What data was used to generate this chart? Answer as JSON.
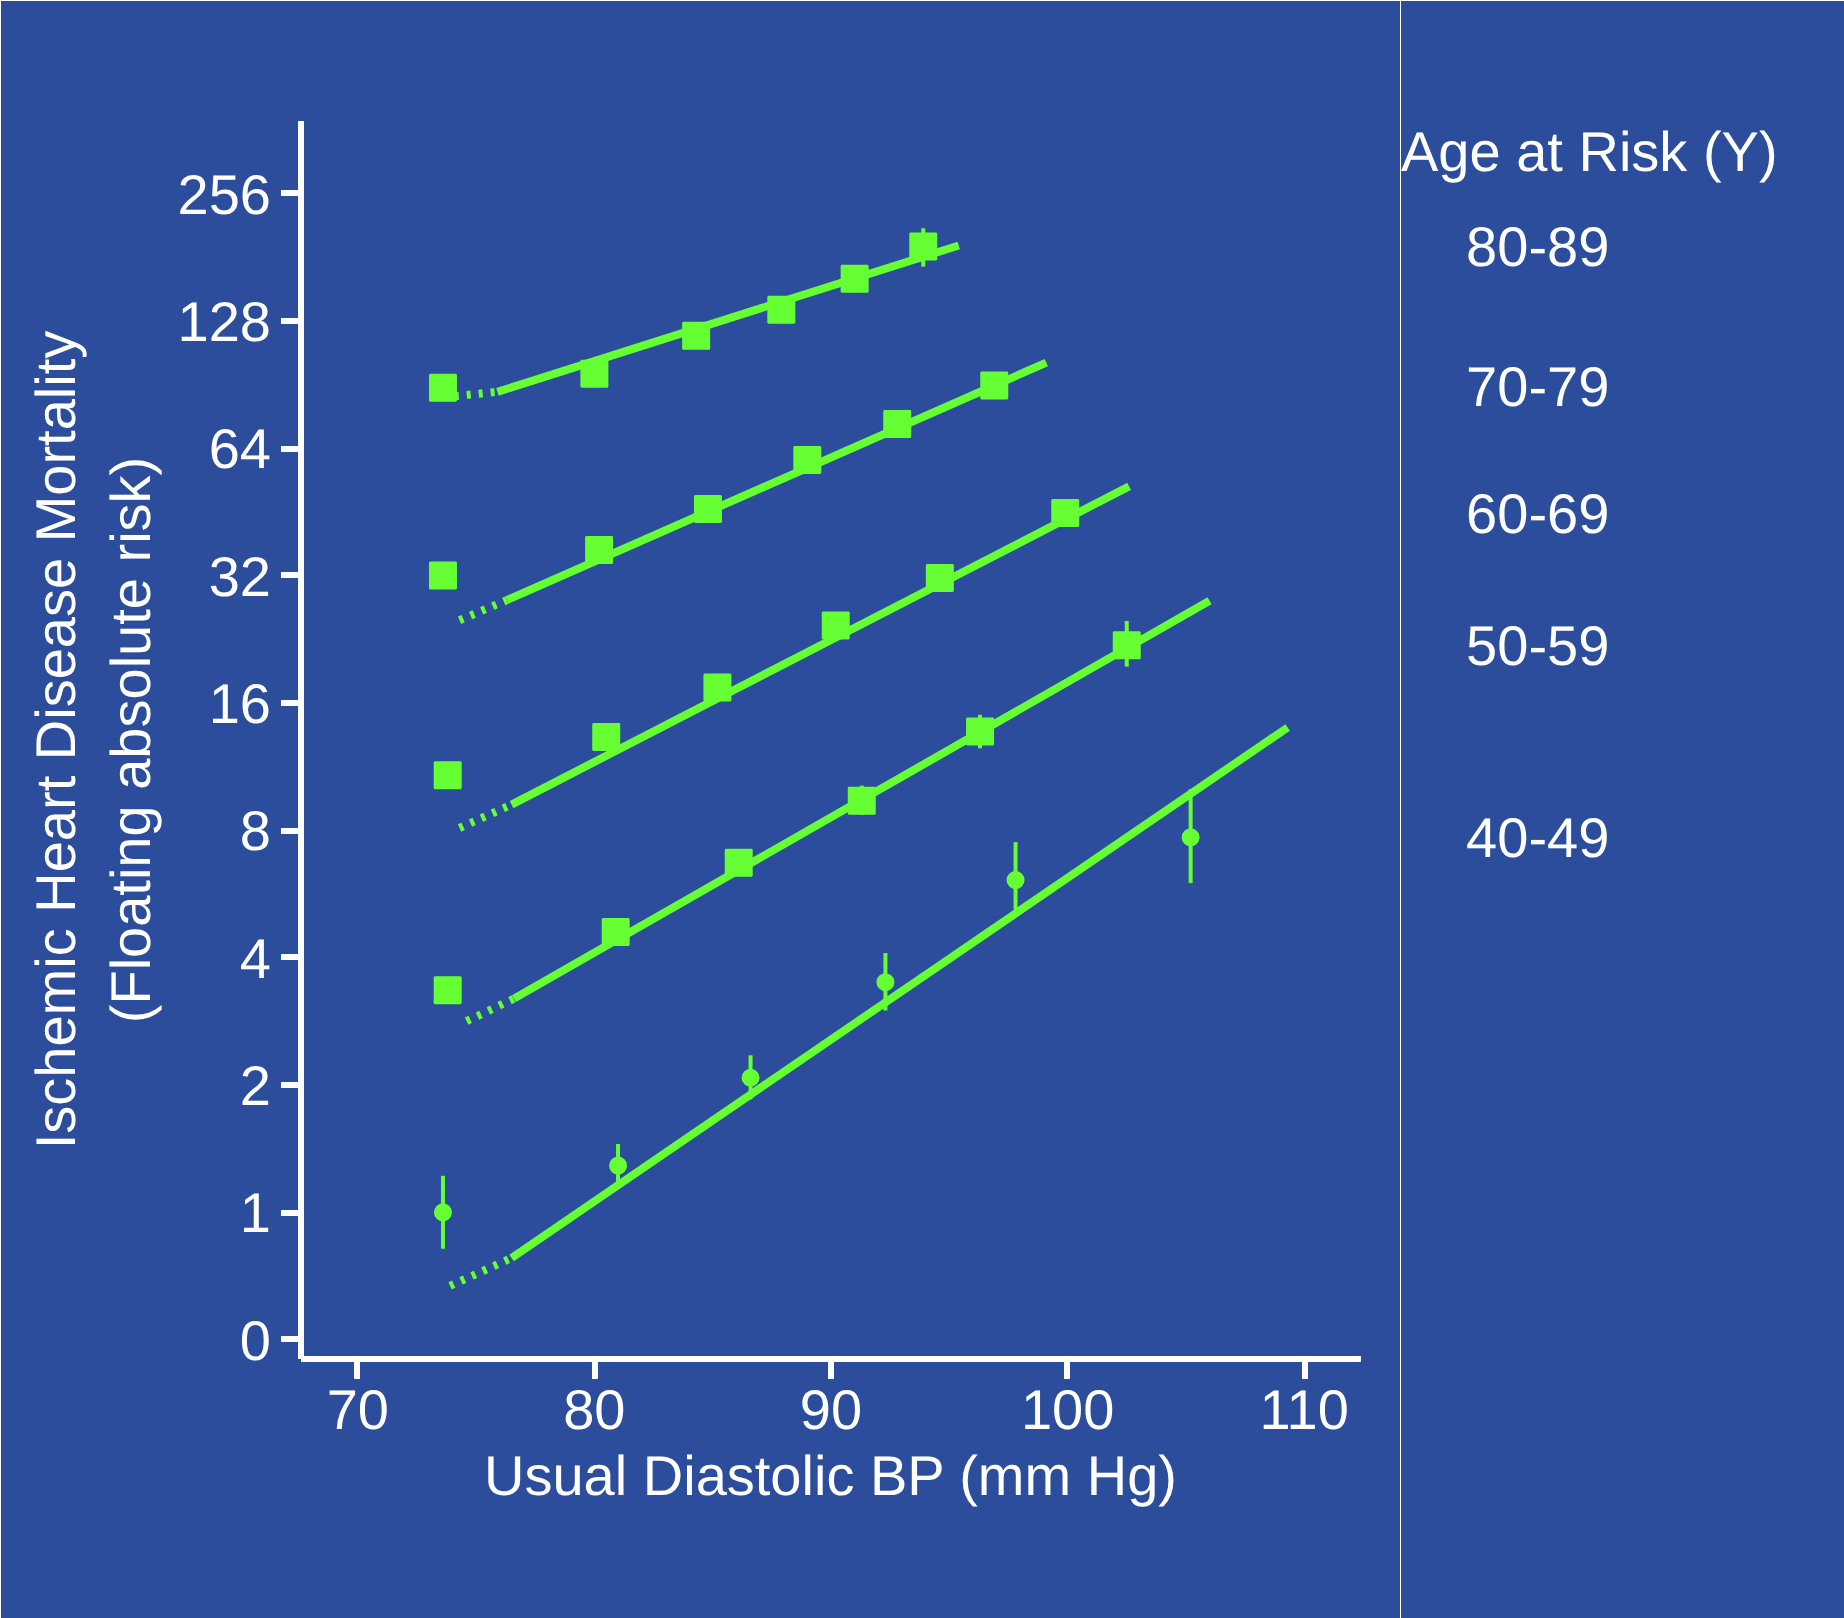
{
  "chart_data": {
    "type": "scatter",
    "xlabel": "Usual Diastolic BP (mm Hg)",
    "ylabel": "Ischemic Heart Disease Mortality\n(Floating absolute risk)",
    "legend_title": "Age at Risk (Y)",
    "log": "y",
    "grid": false,
    "marker": "square",
    "xlim": [
      67.6,
      112.4
    ],
    "xticks": [
      70,
      80,
      90,
      100,
      110
    ],
    "ylim": [
      0.45,
      380
    ],
    "yticks": [
      {
        "value": 0.5,
        "label": "0"
      },
      1,
      2,
      4,
      8,
      16,
      32,
      64,
      128,
      256
    ],
    "series": [
      {
        "name": "80-89",
        "color": "#66ff33",
        "x": [
          73.6,
          80.0,
          84.3,
          87.9,
          91.0,
          93.9
        ],
        "values": [
          89,
          96,
          118,
          136,
          161,
          192
        ],
        "errors": [
          [
            84,
            94
          ],
          null,
          null,
          null,
          null,
          [
            172,
            212
          ]
        ]
      },
      {
        "name": "70-79",
        "color": "#66ff33",
        "x": [
          73.6,
          80.2,
          84.8,
          89.0,
          92.8,
          96.9
        ],
        "values": [
          32,
          36.8,
          46,
          60,
          73,
          90
        ],
        "errors": [
          null,
          null,
          null,
          null,
          null,
          [
            84,
            96
          ]
        ]
      },
      {
        "name": "60-69",
        "color": "#66ff33",
        "x": [
          73.8,
          80.5,
          85.2,
          90.2,
          94.6,
          99.9
        ],
        "values": [
          10.8,
          13.3,
          17.4,
          24.4,
          31.6,
          45
        ],
        "errors": [
          null,
          null,
          null,
          null,
          null,
          [
            42,
            48
          ]
        ]
      },
      {
        "name": "50-59",
        "color": "#66ff33",
        "x": [
          73.8,
          80.9,
          86.1,
          91.3,
          96.3,
          102.5
        ],
        "values": [
          3.35,
          4.6,
          6.7,
          9.4,
          13.7,
          21.9
        ],
        "errors": [
          null,
          null,
          null,
          [
            8.7,
            10.2
          ],
          [
            12.5,
            15
          ],
          [
            19.5,
            25
          ]
        ]
      },
      {
        "name": "40-49",
        "color": "#66ff33",
        "marker": "circle",
        "x": [
          73.6,
          81.0,
          86.6,
          92.3,
          97.8,
          105.2
        ],
        "values": [
          1,
          1.29,
          2.08,
          3.5,
          6.1,
          7.7
        ],
        "errors": [
          [
            0.82,
            1.22
          ],
          [
            1.15,
            1.45
          ],
          [
            1.85,
            2.35
          ],
          [
            3.0,
            4.1
          ],
          [
            5.2,
            7.5
          ],
          [
            6.0,
            10.0
          ]
        ]
      },
      {
        "type": "line",
        "line_style": "dotted",
        "color": "#66ff33",
        "x": [
          74.1,
          75.9
        ],
        "values": [
          85,
          87
        ],
        "marker": "none"
      },
      {
        "type": "line",
        "line_style": "solid",
        "color": "#66ff33",
        "x": [
          75.9,
          95.4
        ],
        "values": [
          87,
          193
        ],
        "marker": "none"
      },
      {
        "type": "line",
        "line_style": "dotted",
        "color": "#66ff33",
        "x": [
          74.3,
          76.3
        ],
        "values": [
          25.1,
          28.0
        ],
        "marker": "none"
      },
      {
        "type": "line",
        "line_style": "solid",
        "color": "#66ff33",
        "x": [
          76.3,
          99.1
        ],
        "values": [
          28.0,
          102
        ],
        "marker": "none"
      },
      {
        "type": "line",
        "line_style": "dotted",
        "color": "#66ff33",
        "x": [
          74.3,
          76.5
        ],
        "values": [
          8.1,
          9.2
        ],
        "marker": "none"
      },
      {
        "type": "line",
        "line_style": "solid",
        "color": "#66ff33",
        "x": [
          76.5,
          102.6
        ],
        "values": [
          9.2,
          52
        ],
        "marker": "none"
      },
      {
        "type": "line",
        "line_style": "dotted",
        "color": "#66ff33",
        "x": [
          74.6,
          76.6
        ],
        "values": [
          2.83,
          3.2
        ],
        "marker": "none"
      },
      {
        "type": "line",
        "line_style": "solid",
        "color": "#66ff33",
        "x": [
          76.6,
          106.0
        ],
        "values": [
          3.2,
          27.9
        ],
        "marker": "none"
      },
      {
        "type": "line",
        "line_style": "dotted",
        "color": "#66ff33",
        "x": [
          73.9,
          76.5
        ],
        "values": [
          0.67,
          0.78
        ],
        "marker": "none"
      },
      {
        "type": "line",
        "line_style": "solid",
        "color": "#66ff33",
        "x": [
          76.5,
          109.3
        ],
        "values": [
          0.78,
          14
        ],
        "marker": "none"
      }
    ]
  }
}
